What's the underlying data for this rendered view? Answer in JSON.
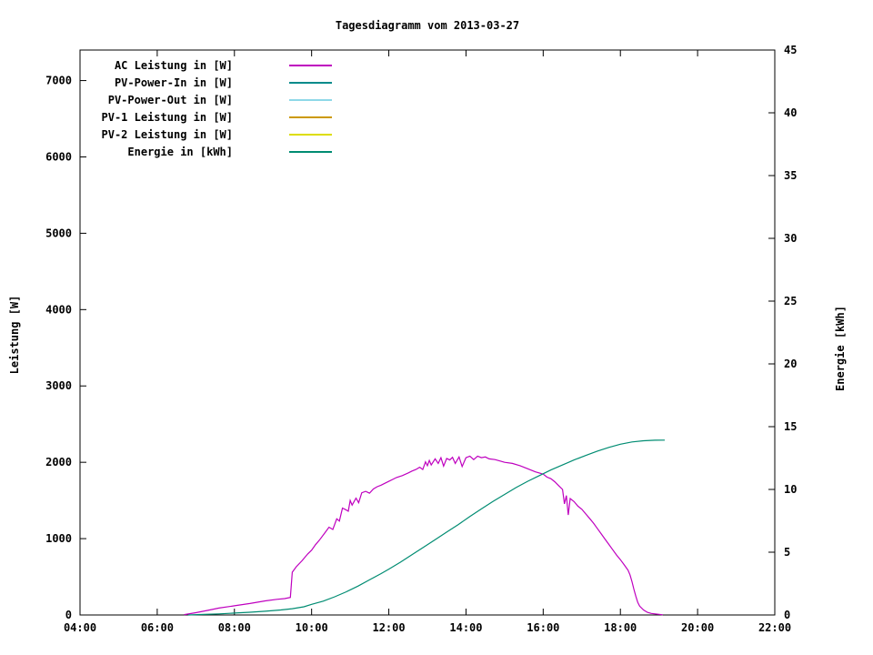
{
  "chart_data": {
    "type": "line",
    "title": "Tagesdiagramm vom 2013-03-27",
    "ylabel": "Leistung [W]",
    "y2label": "Energie [kWh]",
    "grid": false,
    "legend_position": "top-left-inside",
    "x_range": [
      4,
      22
    ],
    "y_range": [
      0,
      7400
    ],
    "y2_range": [
      0,
      45
    ],
    "x_ticks": [
      {
        "v": 4,
        "label": "04:00"
      },
      {
        "v": 6,
        "label": "06:00"
      },
      {
        "v": 8,
        "label": "08:00"
      },
      {
        "v": 10,
        "label": "10:00"
      },
      {
        "v": 12,
        "label": "12:00"
      },
      {
        "v": 14,
        "label": "14:00"
      },
      {
        "v": 16,
        "label": "16:00"
      },
      {
        "v": 18,
        "label": "18:00"
      },
      {
        "v": 20,
        "label": "20:00"
      },
      {
        "v": 22,
        "label": "22:00"
      }
    ],
    "y_ticks": [
      {
        "v": 0,
        "label": "0"
      },
      {
        "v": 1000,
        "label": "1000"
      },
      {
        "v": 2000,
        "label": "2000"
      },
      {
        "v": 3000,
        "label": "3000"
      },
      {
        "v": 4000,
        "label": "4000"
      },
      {
        "v": 5000,
        "label": "5000"
      },
      {
        "v": 6000,
        "label": "6000"
      },
      {
        "v": 7000,
        "label": "7000"
      }
    ],
    "y2_ticks": [
      {
        "v": 0,
        "label": "0"
      },
      {
        "v": 5,
        "label": "5"
      },
      {
        "v": 10,
        "label": "10"
      },
      {
        "v": 15,
        "label": "15"
      },
      {
        "v": 20,
        "label": "20"
      },
      {
        "v": 25,
        "label": "25"
      },
      {
        "v": 30,
        "label": "30"
      },
      {
        "v": 35,
        "label": "35"
      },
      {
        "v": 40,
        "label": "40"
      },
      {
        "v": 45,
        "label": "45"
      }
    ],
    "legend": [
      {
        "label": "AC Leistung in [W]",
        "color": "#bf00bf"
      },
      {
        "label": "PV-Power-In in [W]",
        "color": "#008b8b"
      },
      {
        "label": "PV-Power-Out in [W]",
        "color": "#8fd8e8"
      },
      {
        "label": "PV-1 Leistung in [W]",
        "color": "#cc9900"
      },
      {
        "label": "PV-2 Leistung in [W]",
        "color": "#dddd00"
      },
      {
        "label": "Energie in [kWh]",
        "color": "#008c72"
      }
    ],
    "series": [
      {
        "name": "AC Leistung in [W]",
        "axis": "y",
        "color": "#bf00bf",
        "points": [
          [
            6.7,
            5
          ],
          [
            7.0,
            30
          ],
          [
            7.3,
            60
          ],
          [
            7.6,
            90
          ],
          [
            8.0,
            120
          ],
          [
            8.4,
            150
          ],
          [
            8.8,
            185
          ],
          [
            9.1,
            205
          ],
          [
            9.3,
            215
          ],
          [
            9.45,
            230
          ],
          [
            9.5,
            560
          ],
          [
            9.6,
            630
          ],
          [
            9.75,
            710
          ],
          [
            9.9,
            800
          ],
          [
            10.0,
            850
          ],
          [
            10.1,
            920
          ],
          [
            10.2,
            980
          ],
          [
            10.35,
            1080
          ],
          [
            10.45,
            1150
          ],
          [
            10.55,
            1120
          ],
          [
            10.65,
            1260
          ],
          [
            10.72,
            1230
          ],
          [
            10.8,
            1400
          ],
          [
            10.88,
            1380
          ],
          [
            10.95,
            1360
          ],
          [
            11.0,
            1500
          ],
          [
            11.05,
            1440
          ],
          [
            11.15,
            1530
          ],
          [
            11.22,
            1470
          ],
          [
            11.3,
            1600
          ],
          [
            11.4,
            1620
          ],
          [
            11.5,
            1595
          ],
          [
            11.6,
            1650
          ],
          [
            11.7,
            1680
          ],
          [
            11.8,
            1700
          ],
          [
            11.9,
            1725
          ],
          [
            12.0,
            1750
          ],
          [
            12.1,
            1775
          ],
          [
            12.2,
            1800
          ],
          [
            12.35,
            1825
          ],
          [
            12.5,
            1860
          ],
          [
            12.6,
            1885
          ],
          [
            12.7,
            1905
          ],
          [
            12.8,
            1935
          ],
          [
            12.88,
            1905
          ],
          [
            12.95,
            2005
          ],
          [
            13.0,
            1955
          ],
          [
            13.05,
            2025
          ],
          [
            13.1,
            1965
          ],
          [
            13.2,
            2045
          ],
          [
            13.28,
            1985
          ],
          [
            13.35,
            2060
          ],
          [
            13.42,
            1950
          ],
          [
            13.5,
            2050
          ],
          [
            13.58,
            2030
          ],
          [
            13.65,
            2065
          ],
          [
            13.72,
            1985
          ],
          [
            13.82,
            2070
          ],
          [
            13.9,
            1945
          ],
          [
            14.0,
            2060
          ],
          [
            14.1,
            2080
          ],
          [
            14.2,
            2035
          ],
          [
            14.3,
            2080
          ],
          [
            14.4,
            2060
          ],
          [
            14.5,
            2070
          ],
          [
            14.6,
            2045
          ],
          [
            14.75,
            2035
          ],
          [
            14.9,
            2015
          ],
          [
            15.0,
            2000
          ],
          [
            15.2,
            1985
          ],
          [
            15.4,
            1955
          ],
          [
            15.6,
            1915
          ],
          [
            15.8,
            1875
          ],
          [
            16.0,
            1845
          ],
          [
            16.1,
            1805
          ],
          [
            16.2,
            1785
          ],
          [
            16.3,
            1745
          ],
          [
            16.4,
            1695
          ],
          [
            16.5,
            1645
          ],
          [
            16.55,
            1455
          ],
          [
            16.6,
            1565
          ],
          [
            16.65,
            1310
          ],
          [
            16.7,
            1525
          ],
          [
            16.8,
            1485
          ],
          [
            16.9,
            1425
          ],
          [
            17.0,
            1385
          ],
          [
            17.1,
            1325
          ],
          [
            17.2,
            1265
          ],
          [
            17.3,
            1205
          ],
          [
            17.4,
            1135
          ],
          [
            17.5,
            1065
          ],
          [
            17.6,
            995
          ],
          [
            17.7,
            925
          ],
          [
            17.8,
            855
          ],
          [
            17.9,
            785
          ],
          [
            18.0,
            725
          ],
          [
            18.1,
            655
          ],
          [
            18.2,
            585
          ],
          [
            18.25,
            525
          ],
          [
            18.3,
            435
          ],
          [
            18.35,
            335
          ],
          [
            18.4,
            245
          ],
          [
            18.45,
            165
          ],
          [
            18.5,
            115
          ],
          [
            18.6,
            65
          ],
          [
            18.7,
            35
          ],
          [
            18.8,
            20
          ],
          [
            19.0,
            8
          ],
          [
            19.1,
            2
          ]
        ]
      },
      {
        "name": "Energie in [kWh]",
        "axis": "y2",
        "color": "#008c72",
        "points": [
          [
            6.8,
            0.0
          ],
          [
            7.2,
            0.04
          ],
          [
            7.6,
            0.09
          ],
          [
            8.0,
            0.15
          ],
          [
            8.4,
            0.22
          ],
          [
            8.8,
            0.3
          ],
          [
            9.2,
            0.4
          ],
          [
            9.5,
            0.5
          ],
          [
            9.8,
            0.65
          ],
          [
            10.0,
            0.85
          ],
          [
            10.3,
            1.1
          ],
          [
            10.6,
            1.45
          ],
          [
            10.9,
            1.85
          ],
          [
            11.2,
            2.3
          ],
          [
            11.5,
            2.8
          ],
          [
            11.8,
            3.3
          ],
          [
            12.0,
            3.65
          ],
          [
            12.3,
            4.2
          ],
          [
            12.6,
            4.8
          ],
          [
            12.9,
            5.4
          ],
          [
            13.2,
            6.0
          ],
          [
            13.5,
            6.6
          ],
          [
            13.8,
            7.2
          ],
          [
            14.1,
            7.85
          ],
          [
            14.4,
            8.45
          ],
          [
            14.7,
            9.05
          ],
          [
            15.0,
            9.6
          ],
          [
            15.3,
            10.15
          ],
          [
            15.6,
            10.65
          ],
          [
            15.9,
            11.1
          ],
          [
            16.2,
            11.55
          ],
          [
            16.5,
            11.95
          ],
          [
            16.8,
            12.35
          ],
          [
            17.1,
            12.7
          ],
          [
            17.4,
            13.05
          ],
          [
            17.7,
            13.35
          ],
          [
            18.0,
            13.6
          ],
          [
            18.3,
            13.78
          ],
          [
            18.6,
            13.88
          ],
          [
            18.9,
            13.92
          ],
          [
            19.15,
            13.93
          ]
        ]
      }
    ]
  }
}
